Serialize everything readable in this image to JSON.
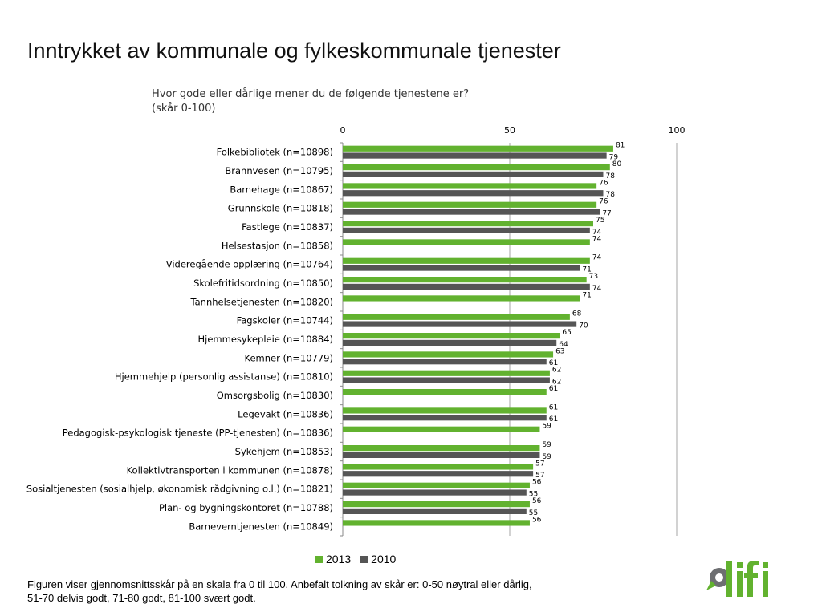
{
  "page_title": "Inntrykket av kommunale og fylkeskommunale tjenester",
  "chart_subtitle_line1": "Hvor gode eller dårlige mener du de følgende tjenestene er?",
  "chart_subtitle_line2": "(skår 0-100)",
  "footnote_line1": "Figuren viser gjennomsnittsskår på en skala fra 0 til 100. Anbefalt tolkning av skår er: 0-50 nøytral eller dårlig,",
  "footnote_line2": "51-70 delvis godt, 71-80 godt, 81-100 svært godt.",
  "logo_text": "difi",
  "colors": {
    "series_2013": "#62b22f",
    "series_2010": "#555555",
    "gridline": "#a6a6a6",
    "logo_green": "#62b22f",
    "logo_gray": "#6d6e71"
  },
  "chart_data": {
    "type": "bar",
    "orientation": "horizontal",
    "xlim": [
      0,
      100
    ],
    "xticks": [
      0,
      50,
      100
    ],
    "grid": true,
    "legend_position": "bottom",
    "categories": [
      "Folkebibliotek (n=10898)",
      "Brannvesen (n=10795)",
      "Barnehage  (n=10867)",
      "Grunnskole (n=10818)",
      "Fastlege (n=10837)",
      "Helsestasjon (n=10858)",
      "Videregående opplæring (n=10764)",
      "Skolefritidsordning (n=10850)",
      "Tannhelsetjenesten (n=10820)",
      "Fagskoler (n=10744)",
      "Hjemmesykepleie (n=10884)",
      "Kemner (n=10779)",
      "Hjemmehjelp (personlig assistanse) (n=10810)",
      "Omsorgsbolig (n=10830)",
      "Legevakt (n=10836)",
      "Pedagogisk-psykologisk tjeneste (PP-tjenesten) (n=10836)",
      "Sykehjem (n=10853)",
      "Kollektivtransporten i kommunen (n=10878)",
      "Sosialtjenesten (sosialhjelp, økonomisk rådgivning o.l.) (n=10821)",
      "Plan- og bygningskontoret (n=10788)",
      "Barneverntjenesten (n=10849)"
    ],
    "series": [
      {
        "name": "2013",
        "values": [
          81,
          80,
          76,
          76,
          75,
          74,
          74,
          73,
          71,
          68,
          65,
          63,
          62,
          61,
          61,
          59,
          59,
          57,
          56,
          56,
          56
        ]
      },
      {
        "name": "2010",
        "values": [
          79,
          78,
          78,
          77,
          74,
          null,
          71,
          74,
          null,
          70,
          64,
          61,
          62,
          null,
          61,
          null,
          59,
          57,
          55,
          55,
          null
        ]
      }
    ]
  }
}
